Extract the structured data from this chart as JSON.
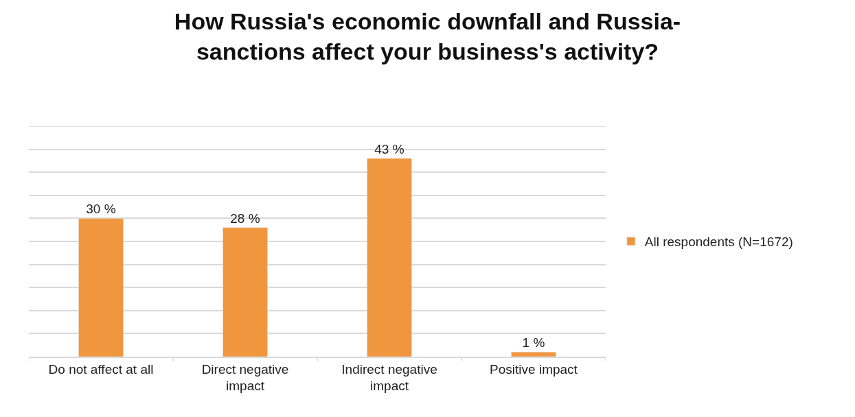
{
  "chart_data": {
    "type": "bar",
    "title": "How Russia's economic downfall and Russia-\nsanctions affect your business's activity?",
    "categories": [
      "Do not affect at all",
      "Direct negative impact",
      "Indirect negative impact",
      "Positive impact"
    ],
    "series": [
      {
        "name": "All respondents (N=1672)",
        "color": "#f0963f",
        "values": [
          30,
          28,
          43,
          1
        ],
        "value_labels": [
          "30 %",
          "28 %",
          "43 %",
          "1 %"
        ]
      }
    ],
    "ylim": [
      0,
      50
    ],
    "yticks": [
      {
        "value": 0,
        "label": null
      },
      {
        "value": 5,
        "label": null
      },
      {
        "value": 10,
        "label": null
      },
      {
        "value": 15,
        "label": null
      },
      {
        "value": 20,
        "label": null
      },
      {
        "value": 25,
        "label": null
      },
      {
        "value": 30,
        "label": null
      },
      {
        "value": 35,
        "label": null
      },
      {
        "value": 40,
        "label": null
      },
      {
        "value": 45,
        "label": null
      },
      {
        "value": 50,
        "label": null
      }
    ],
    "tick_labels": "x",
    "grid": "y",
    "legend": "right"
  }
}
